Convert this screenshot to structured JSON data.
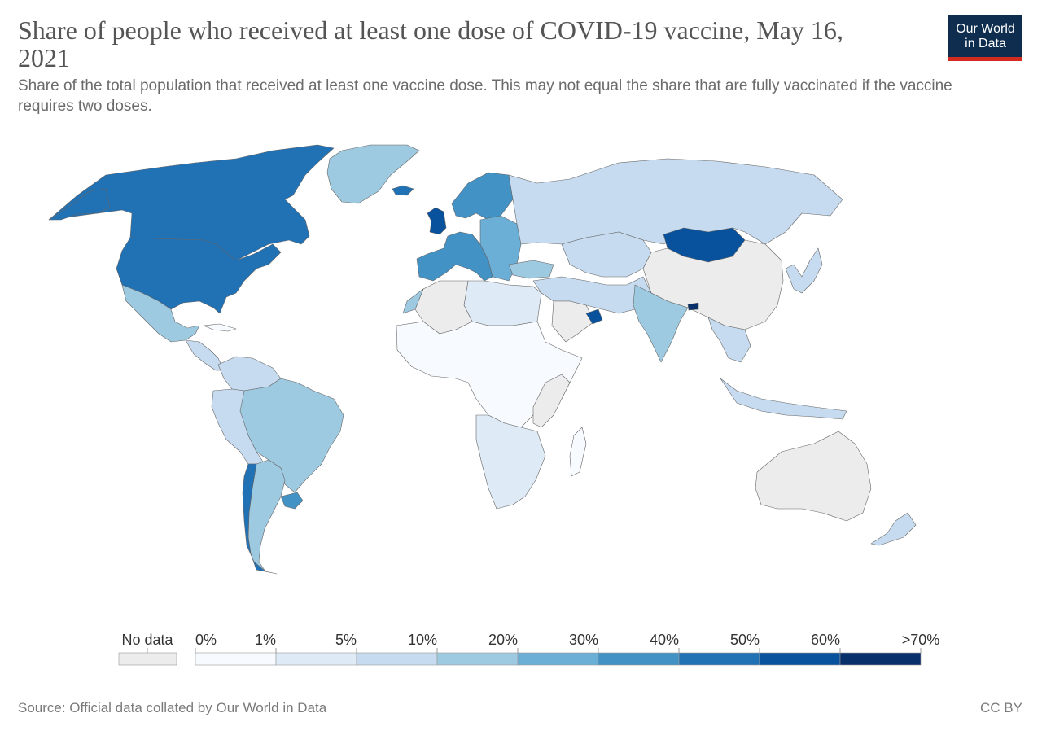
{
  "header": {
    "title": "Share of people who received at least one dose of COVID-19 vaccine, May 16, 2021",
    "subtitle": "Share of the total population that received at least one vaccine dose. This may not equal the share that are fully vaccinated if the vaccine requires two doses."
  },
  "logo": {
    "line1": "Our World",
    "line2": "in Data",
    "bg_color": "#0f2e4f",
    "accent_color": "#d42b21"
  },
  "legend": {
    "no_data_label": "No data",
    "no_data_color": "#ececec",
    "tick_labels": [
      "0%",
      "1%",
      "5%",
      "10%",
      "20%",
      "30%",
      "40%",
      "50%",
      "60%",
      ">70%"
    ],
    "bin_colors": [
      "#f7fbff",
      "#deebf7",
      "#c6dbef",
      "#9ecae1",
      "#6baed6",
      "#4292c6",
      "#2171b5",
      "#08519c",
      "#08306b"
    ]
  },
  "map": {
    "regions": [
      {
        "name": "Canada",
        "bin": 6
      },
      {
        "name": "United States",
        "bin": 6
      },
      {
        "name": "Alaska",
        "bin": 6
      },
      {
        "name": "Greenland",
        "bin": 3
      },
      {
        "name": "Mexico",
        "bin": 3
      },
      {
        "name": "Central America",
        "bin": 2
      },
      {
        "name": "Cuba",
        "bin": 0
      },
      {
        "name": "Colombia / Venezuela",
        "bin": 2
      },
      {
        "name": "Brazil",
        "bin": 3
      },
      {
        "name": "Peru / Bolivia",
        "bin": 2
      },
      {
        "name": "Argentina",
        "bin": 3
      },
      {
        "name": "Chile",
        "bin": 6
      },
      {
        "name": "Uruguay",
        "bin": 5
      },
      {
        "name": "United Kingdom",
        "bin": 7
      },
      {
        "name": "Iceland",
        "bin": 6
      },
      {
        "name": "Western Europe",
        "bin": 5
      },
      {
        "name": "Scandinavia",
        "bin": 5
      },
      {
        "name": "Eastern Europe",
        "bin": 4
      },
      {
        "name": "Russia",
        "bin": 2
      },
      {
        "name": "Kazakhstan / Central Asia",
        "bin": 2
      },
      {
        "name": "Mongolia",
        "bin": 7
      },
      {
        "name": "China",
        "bin": -1
      },
      {
        "name": "Japan / Korea",
        "bin": 2
      },
      {
        "name": "Turkey",
        "bin": 3
      },
      {
        "name": "Middle East",
        "bin": 2
      },
      {
        "name": "Saudi Arabia",
        "bin": -1
      },
      {
        "name": "UAE",
        "bin": 7
      },
      {
        "name": "India",
        "bin": 3
      },
      {
        "name": "Bhutan",
        "bin": 8
      },
      {
        "name": "Southeast Asia",
        "bin": 2
      },
      {
        "name": "Indonesia",
        "bin": 2
      },
      {
        "name": "Australia",
        "bin": -1
      },
      {
        "name": "New Zealand",
        "bin": 2
      },
      {
        "name": "North Africa",
        "bin": 1
      },
      {
        "name": "Algeria / Libya",
        "bin": -1
      },
      {
        "name": "Morocco",
        "bin": 3
      },
      {
        "name": "Sub-Saharan Africa",
        "bin": 0
      },
      {
        "name": "Southern Africa",
        "bin": 1
      },
      {
        "name": "Madagascar",
        "bin": 0
      },
      {
        "name": "Somalia / Ethiopia",
        "bin": -1
      }
    ]
  },
  "footer": {
    "source": "Source: Official data collated by Our World in Data",
    "license": "CC BY"
  }
}
